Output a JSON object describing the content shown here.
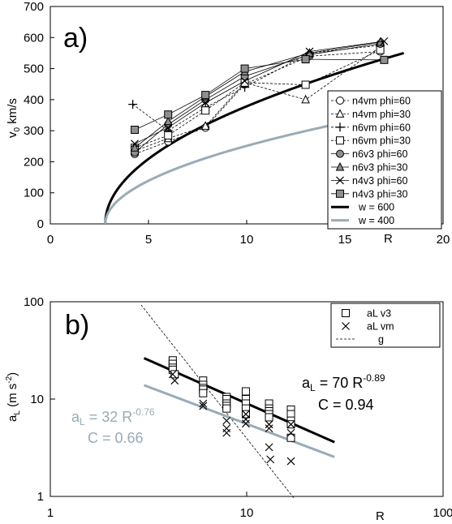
{
  "chart_data": [
    {
      "panel_label": "a)",
      "type": "scatter",
      "xlabel": "R",
      "ylabel_main": "v",
      "ylabel_sub": "0",
      "ylabel_rest": " km/s",
      "xlim": [
        0,
        20
      ],
      "ylim": [
        0,
        700
      ],
      "xticks": [
        0,
        5,
        10,
        15,
        20
      ],
      "yticks": [
        0,
        100,
        200,
        300,
        400,
        500,
        600,
        700
      ],
      "grid": false,
      "legend_position": "right",
      "series": [
        {
          "name": "n4vm phi=60",
          "marker": "circle",
          "line": "dashed",
          "x": [
            4.3,
            6.0,
            7.9,
            9.9,
            13.2,
            16.8
          ],
          "y": [
            225,
            265,
            310,
            450,
            540,
            555
          ]
        },
        {
          "name": "n4vm phi=30",
          "marker": "triangle",
          "line": "dashed",
          "x": [
            4.3,
            6.0,
            7.9,
            9.9,
            13.0,
            16.8
          ],
          "y": [
            235,
            275,
            315,
            455,
            400,
            570
          ]
        },
        {
          "name": "n6vm phi=60",
          "marker": "plus",
          "line": "dashed",
          "x": [
            4.2,
            6.0,
            7.9,
            9.9,
            13.2,
            16.8
          ],
          "y": [
            385,
            300,
            375,
            440,
            550,
            575
          ]
        },
        {
          "name": "n6vm phi=30",
          "marker": "open-square",
          "line": "dashed",
          "x": [
            4.3,
            6.0,
            7.9,
            9.9,
            13.0,
            16.8
          ],
          "y": [
            245,
            285,
            365,
            455,
            448,
            560
          ]
        },
        {
          "name": "n6v3 phi=60",
          "marker": "filled-circle",
          "line": "solid",
          "x": [
            4.3,
            6.0,
            7.9,
            9.9,
            13.2,
            16.8
          ],
          "y": [
            230,
            320,
            400,
            475,
            545,
            580
          ]
        },
        {
          "name": "n6v3 phi=30",
          "marker": "filled-triangle",
          "line": "solid",
          "x": [
            4.3,
            6.0,
            7.9,
            9.9,
            13.2,
            16.8
          ],
          "y": [
            245,
            330,
            410,
            490,
            550,
            585
          ]
        },
        {
          "name": "n4v3 phi=60",
          "marker": "x",
          "line": "solid",
          "x": [
            4.3,
            6.0,
            7.9,
            9.9,
            13.2,
            17.0
          ],
          "y": [
            258,
            310,
            390,
            460,
            555,
            588
          ]
        },
        {
          "name": "n4v3 phi=30",
          "marker": "filled-square",
          "line": "solid",
          "x": [
            4.3,
            6.0,
            7.9,
            9.9,
            13.0,
            17.0
          ],
          "y": [
            303,
            352,
            415,
            500,
            530,
            528
          ]
        }
      ],
      "curves": [
        {
          "name": "w = 600",
          "color": "#000000",
          "x0": 2.8,
          "xmax": 18.0,
          "y_at_xmax": 550
        },
        {
          "name": "w = 400",
          "color": "#9aabb6",
          "x0": 2.8,
          "xmax": 18.0,
          "y_at_xmax": 365
        }
      ]
    },
    {
      "panel_label": "b)",
      "type": "scatter",
      "xscale": "log",
      "yscale": "log",
      "xlabel": "R",
      "ylabel_main": "a",
      "ylabel_sub": "L",
      "ylabel_rest": " (m s",
      "ylabel_sup": "-2",
      "ylabel_end": ")",
      "xlim": [
        1,
        100
      ],
      "ylim": [
        1,
        100
      ],
      "xticks": [
        1,
        10,
        100
      ],
      "yticks": [
        1,
        10,
        100
      ],
      "grid": false,
      "legend_position": "top-right",
      "series": [
        {
          "name": "aL  v3",
          "marker": "open-square",
          "x": [
            4.2,
            4.2,
            4.2,
            4.2,
            4.3,
            6.0,
            6.0,
            6.0,
            6.0,
            6.0,
            7.9,
            7.9,
            7.9,
            7.9,
            7.9,
            9.9,
            9.9,
            9.9,
            9.9,
            9.9,
            13.0,
            13.0,
            13.0,
            13.0,
            13.0,
            16.8,
            16.8,
            16.8,
            16.8,
            16.8
          ],
          "y": [
            25,
            23,
            21,
            20,
            18,
            15.5,
            14,
            13,
            12.5,
            11.5,
            10.5,
            10,
            9,
            8.5,
            8,
            12,
            10,
            9,
            8,
            7,
            9,
            8,
            7.5,
            7,
            6.5,
            7.8,
            7,
            6,
            5.5,
            4
          ]
        },
        {
          "name": "aL  vm",
          "marker": "x",
          "x": [
            4.3,
            4.2,
            6.0,
            6.0,
            7.9,
            7.9,
            7.9,
            9.9,
            9.9,
            9.9,
            13.0,
            13.0,
            13.0,
            13.2,
            16.8,
            16.8,
            16.8
          ],
          "y": [
            15.5,
            18,
            9,
            8.5,
            6,
            5,
            4.5,
            7,
            6.2,
            5.6,
            5.5,
            5,
            3.2,
            2.4,
            5.5,
            4.5,
            2.3
          ]
        }
      ],
      "fits": [
        {
          "label": "a",
          "sub": "L",
          "mid": " = 70 R",
          "sup": "-0.89",
          "c_label": "C = 0.94",
          "a": 70,
          "b": -0.89,
          "color": "#000000",
          "x_range": [
            3.0,
            28.0
          ]
        },
        {
          "label": "a",
          "sub": "L",
          "mid": " = 32 R",
          "sup": "-0.76",
          "c_label": "C = 0.66",
          "a": 32,
          "b": -0.76,
          "color": "#9aabb6",
          "x_range": [
            3.0,
            28.0
          ]
        }
      ],
      "g_line": {
        "name": "g",
        "a": 1400,
        "b": -2.55,
        "x_range": [
          2.9,
          17.5
        ]
      }
    }
  ]
}
